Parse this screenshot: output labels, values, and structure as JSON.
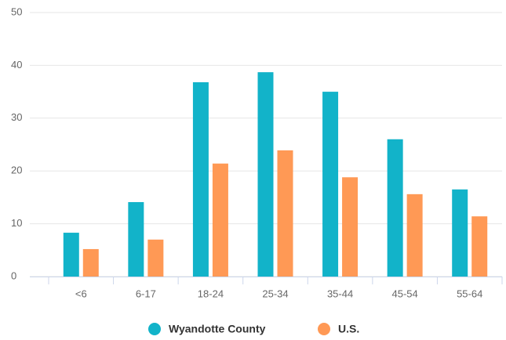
{
  "chart_data": {
    "type": "bar",
    "categories": [
      "<6",
      "6-17",
      "18-24",
      "25-34",
      "35-44",
      "45-54",
      "55-64"
    ],
    "series": [
      {
        "name": "Wyandotte County",
        "color": "#12b3c9",
        "values": [
          8.3,
          14.1,
          36.8,
          38.7,
          35.0,
          26.0,
          16.5
        ]
      },
      {
        "name": "U.S.",
        "color": "#ff9955",
        "values": [
          5.2,
          7.0,
          21.4,
          23.9,
          18.8,
          15.6,
          11.4
        ]
      }
    ],
    "ylim": [
      0,
      50
    ],
    "yticks": [
      0,
      10,
      20,
      30,
      40,
      50
    ],
    "grid": true,
    "legend": "bottom"
  }
}
